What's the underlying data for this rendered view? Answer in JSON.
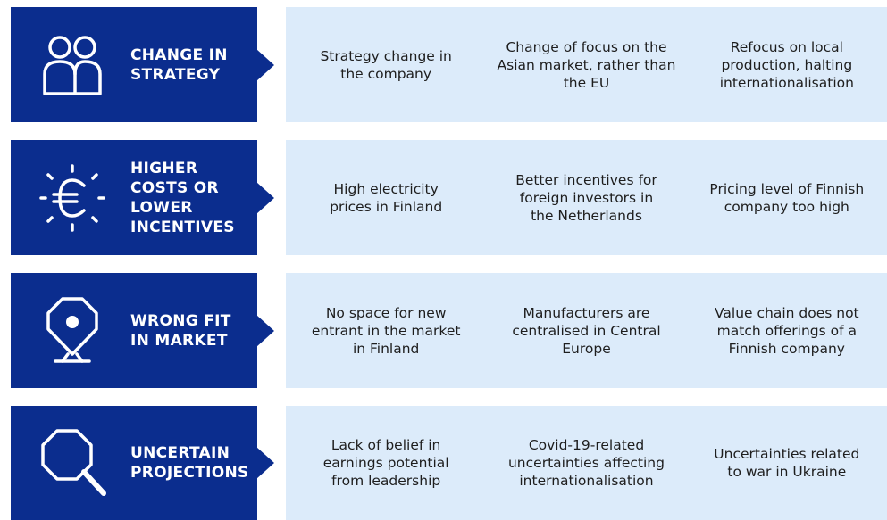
{
  "rows": [
    {
      "label": [
        "CHANGE IN",
        "STRATEGY"
      ],
      "items": [
        [
          "Strategy change in",
          "the company"
        ],
        [
          "Change of focus on the",
          "Asian market, rather than",
          "the EU"
        ],
        [
          "Refocus on local",
          "production, halting",
          "internationalisation"
        ]
      ]
    },
    {
      "label": [
        "HIGHER",
        "COSTS OR",
        "LOWER",
        "INCENTIVES"
      ],
      "items": [
        [
          "High electricity",
          "prices in Finland"
        ],
        [
          "Better incentives for",
          "foreign investors in",
          "the Netherlands"
        ],
        [
          "Pricing level of Finnish",
          "company too high"
        ]
      ]
    },
    {
      "label": [
        "WRONG FIT",
        "IN MARKET"
      ],
      "items": [
        [
          "No space for new",
          "entrant in the market",
          "in Finland"
        ],
        [
          "Manufacturers are",
          "centralised in Central",
          "Europe"
        ],
        [
          "Value chain does not",
          "match offerings of a",
          "Finnish company"
        ]
      ]
    },
    {
      "label": [
        "UNCERTAIN",
        "PROJECTIONS"
      ],
      "items": [
        [
          "Lack of belief in",
          "earnings potential",
          "from leadership"
        ],
        [
          "Covid-19-related",
          "uncertainties affecting",
          "internationalisation"
        ],
        [
          "Uncertainties related",
          "to war in Ukraine"
        ]
      ]
    }
  ]
}
